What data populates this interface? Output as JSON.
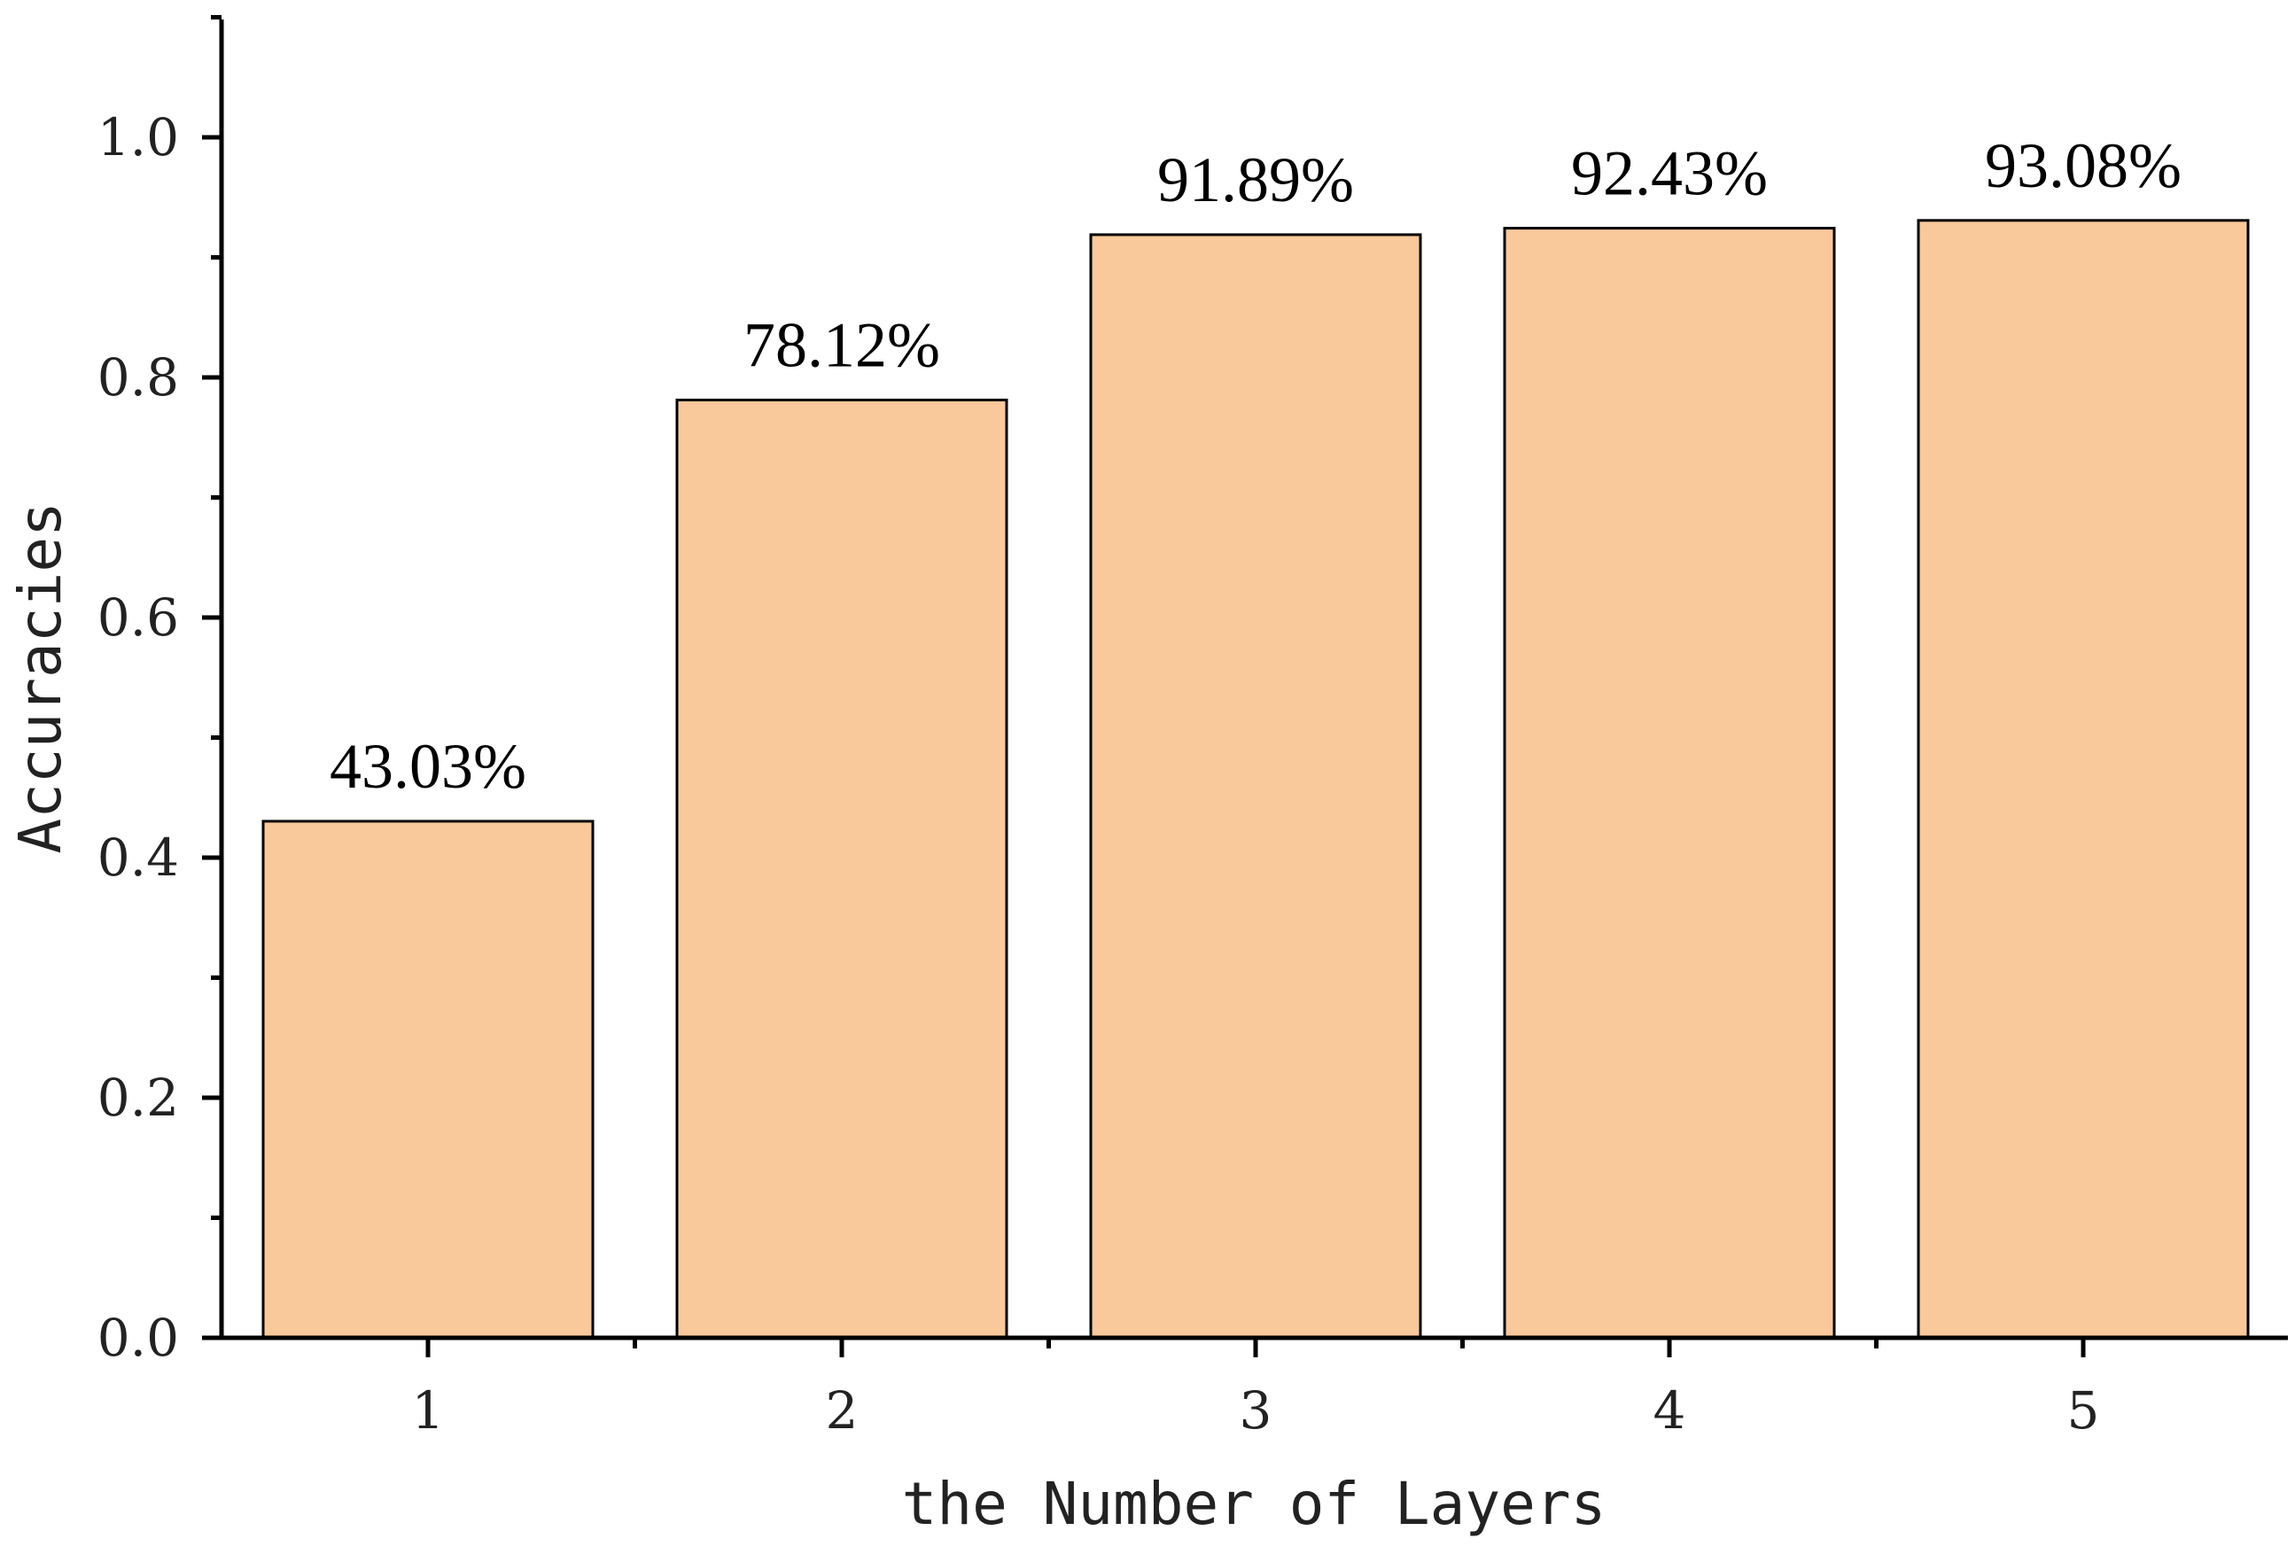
{
  "chart_data": {
    "type": "bar",
    "categories": [
      "1",
      "2",
      "3",
      "4",
      "5"
    ],
    "values": [
      0.4303,
      0.7812,
      0.9189,
      0.9243,
      0.9308
    ],
    "data_labels": [
      "43.03%",
      "78.12%",
      "91.89%",
      "92.43%",
      "93.08%"
    ],
    "title": "",
    "xlabel": "the Number of Layers",
    "ylabel": "Accuracies",
    "ylim": [
      0,
      1.1
    ],
    "yticks": [
      "0.0",
      "0.2",
      "0.4",
      "0.6",
      "0.8",
      "1.0"
    ],
    "grid": false,
    "legend": "none",
    "bar_color": "#F9C89B",
    "edge_color": "#000000"
  }
}
